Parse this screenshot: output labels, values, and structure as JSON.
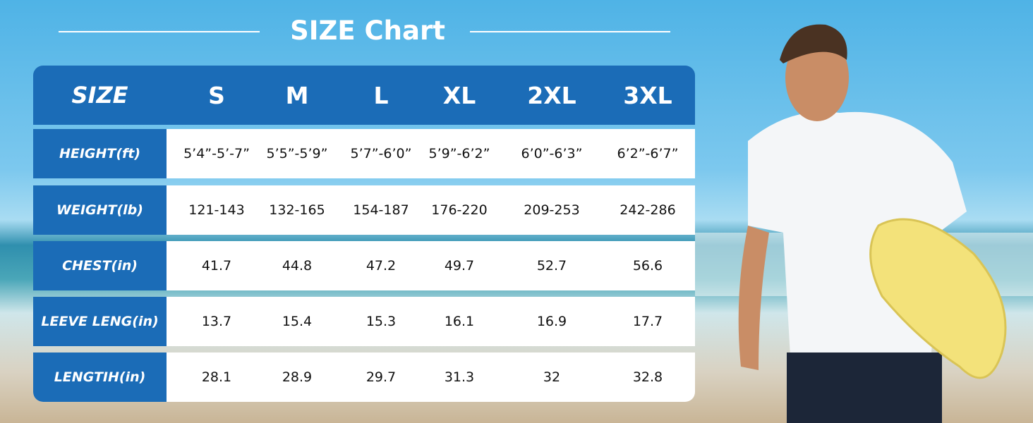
{
  "title": "SIZE Chart",
  "table": {
    "header": [
      "SIZE",
      "S",
      "M",
      "L",
      "XL",
      "2XL",
      "3XL"
    ],
    "rows": [
      [
        "HEIGHT(ft)",
        "5’4”-5’-7”",
        "5’5”-5’9”",
        "5’7”-6’0”",
        "5’9”-6’2”",
        "6’0”-6’3”",
        "6’2”-6’7”"
      ],
      [
        "WEIGHT(lb)",
        "121-143",
        "132-165",
        "154-187",
        "176-220",
        "209-253",
        "242-286"
      ],
      [
        "CHEST(in)",
        "41.7",
        "44.8",
        "47.2",
        "49.7",
        "52.7",
        "56.6"
      ],
      [
        "LEEVE LENG(in)",
        "13.7",
        "15.4",
        "15.3",
        "16.1",
        "16.9",
        "17.7"
      ],
      [
        "LENGTIH(in)",
        "28.1",
        "28.9",
        "29.7",
        "31.3",
        "32",
        "32.8"
      ]
    ]
  }
}
